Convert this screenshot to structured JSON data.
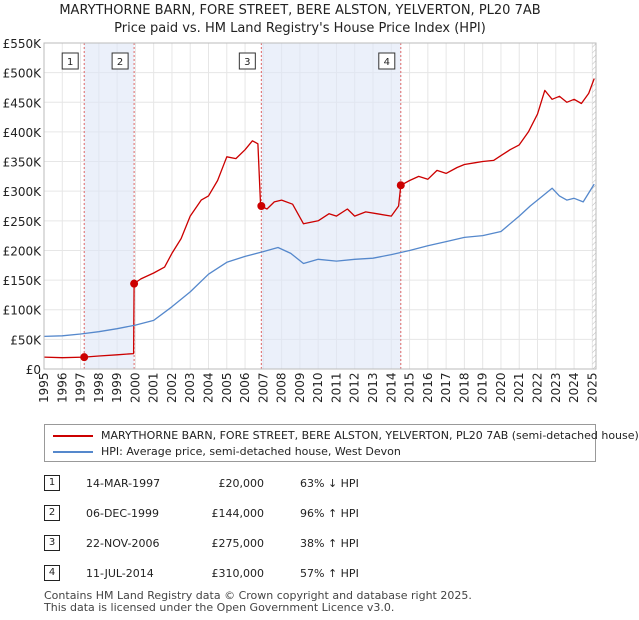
{
  "chart_data": {
    "type": "line",
    "title": "MARYTHORNE BARN, FORE STREET, BERE ALSTON, YELVERTON, PL20 7AB",
    "subtitle": "Price paid vs. HM Land Registry's House Price Index (HPI)",
    "xlim": [
      1995,
      2025.2
    ],
    "ylim": [
      0,
      550000
    ],
    "x_ticks": [
      1995,
      1996,
      1997,
      1998,
      1999,
      2000,
      2001,
      2002,
      2003,
      2004,
      2005,
      2006,
      2007,
      2008,
      2009,
      2010,
      2011,
      2012,
      2013,
      2014,
      2015,
      2016,
      2017,
      2018,
      2019,
      2020,
      2021,
      2022,
      2023,
      2024,
      2025
    ],
    "y_ticks": [
      0,
      50000,
      100000,
      150000,
      200000,
      250000,
      300000,
      350000,
      400000,
      450000,
      500000,
      550000
    ],
    "y_tick_labels": [
      "£0",
      "£50K",
      "£100K",
      "£150K",
      "£200K",
      "£250K",
      "£300K",
      "£350K",
      "£400K",
      "£450K",
      "£500K",
      "£550K"
    ],
    "series": [
      {
        "name": "MARYTHORNE BARN, FORE STREET, BERE ALSTON, YELVERTON, PL20 7AB (semi-detached house)",
        "color": "#cc0000",
        "points": [
          [
            1995.0,
            20000
          ],
          [
            1996.0,
            19000
          ],
          [
            1997.2,
            20000
          ],
          [
            1998.0,
            22000
          ],
          [
            1999.0,
            24000
          ],
          [
            1999.9,
            26000
          ],
          [
            1999.93,
            144000
          ],
          [
            2000.3,
            152000
          ],
          [
            2001.0,
            162000
          ],
          [
            2001.6,
            172000
          ],
          [
            2002.0,
            195000
          ],
          [
            2002.5,
            220000
          ],
          [
            2003.0,
            258000
          ],
          [
            2003.6,
            285000
          ],
          [
            2004.0,
            292000
          ],
          [
            2004.5,
            318000
          ],
          [
            2005.0,
            358000
          ],
          [
            2005.5,
            355000
          ],
          [
            2006.0,
            370000
          ],
          [
            2006.4,
            385000
          ],
          [
            2006.7,
            380000
          ],
          [
            2006.85,
            275000
          ],
          [
            2007.2,
            270000
          ],
          [
            2007.6,
            282000
          ],
          [
            2008.0,
            285000
          ],
          [
            2008.6,
            278000
          ],
          [
            2009.2,
            245000
          ],
          [
            2010.0,
            250000
          ],
          [
            2010.6,
            262000
          ],
          [
            2011.0,
            258000
          ],
          [
            2011.6,
            270000
          ],
          [
            2012.0,
            258000
          ],
          [
            2012.6,
            265000
          ],
          [
            2013.2,
            262000
          ],
          [
            2014.0,
            258000
          ],
          [
            2014.4,
            275000
          ],
          [
            2014.52,
            310000
          ],
          [
            2015.0,
            318000
          ],
          [
            2015.5,
            325000
          ],
          [
            2016.0,
            320000
          ],
          [
            2016.5,
            335000
          ],
          [
            2017.0,
            330000
          ],
          [
            2017.6,
            340000
          ],
          [
            2018.0,
            345000
          ],
          [
            2018.6,
            348000
          ],
          [
            2019.0,
            350000
          ],
          [
            2019.6,
            352000
          ],
          [
            2020.0,
            360000
          ],
          [
            2020.5,
            370000
          ],
          [
            2021.0,
            378000
          ],
          [
            2021.5,
            400000
          ],
          [
            2022.0,
            430000
          ],
          [
            2022.4,
            470000
          ],
          [
            2022.8,
            455000
          ],
          [
            2023.2,
            460000
          ],
          [
            2023.6,
            450000
          ],
          [
            2024.0,
            455000
          ],
          [
            2024.4,
            448000
          ],
          [
            2024.8,
            465000
          ],
          [
            2025.1,
            490000
          ]
        ]
      },
      {
        "name": "HPI: Average price, semi-detached house, West Devon",
        "color": "#5588cc",
        "points": [
          [
            1995.0,
            55000
          ],
          [
            1996.0,
            56000
          ],
          [
            1997.0,
            59000
          ],
          [
            1998.0,
            63000
          ],
          [
            1999.0,
            68000
          ],
          [
            2000.0,
            74000
          ],
          [
            2001.0,
            82000
          ],
          [
            2002.0,
            105000
          ],
          [
            2003.0,
            130000
          ],
          [
            2004.0,
            160000
          ],
          [
            2005.0,
            180000
          ],
          [
            2006.0,
            190000
          ],
          [
            2007.0,
            198000
          ],
          [
            2007.8,
            205000
          ],
          [
            2008.5,
            195000
          ],
          [
            2009.2,
            178000
          ],
          [
            2010.0,
            185000
          ],
          [
            2011.0,
            182000
          ],
          [
            2012.0,
            185000
          ],
          [
            2013.0,
            187000
          ],
          [
            2014.0,
            193000
          ],
          [
            2015.0,
            200000
          ],
          [
            2016.0,
            208000
          ],
          [
            2017.0,
            215000
          ],
          [
            2018.0,
            222000
          ],
          [
            2019.0,
            225000
          ],
          [
            2020.0,
            232000
          ],
          [
            2021.0,
            258000
          ],
          [
            2021.6,
            275000
          ],
          [
            2022.2,
            290000
          ],
          [
            2022.8,
            305000
          ],
          [
            2023.2,
            292000
          ],
          [
            2023.6,
            285000
          ],
          [
            2024.0,
            288000
          ],
          [
            2024.5,
            282000
          ],
          [
            2025.1,
            312000
          ]
        ]
      }
    ],
    "transactions": [
      {
        "label": "1",
        "x": 1997.2,
        "value": 20000
      },
      {
        "label": "2",
        "x": 1999.93,
        "value": 144000
      },
      {
        "label": "3",
        "x": 2006.89,
        "value": 275000
      },
      {
        "label": "4",
        "x": 2014.52,
        "value": 310000
      }
    ]
  },
  "legend": {
    "property": "MARYTHORNE BARN, FORE STREET, BERE ALSTON, YELVERTON, PL20 7AB (semi-detached house)",
    "hpi": "HPI: Average price, semi-detached house, West Devon"
  },
  "table": [
    {
      "num": "1",
      "date": "14-MAR-1997",
      "price": "£20,000",
      "hpi": "63% ↓ HPI"
    },
    {
      "num": "2",
      "date": "06-DEC-1999",
      "price": "£144,000",
      "hpi": "96% ↑ HPI"
    },
    {
      "num": "3",
      "date": "22-NOV-2006",
      "price": "£275,000",
      "hpi": "38% ↑ HPI"
    },
    {
      "num": "4",
      "date": "11-JUL-2014",
      "price": "£310,000",
      "hpi": "57% ↑ HPI"
    }
  ],
  "footer": {
    "line1": "Contains HM Land Registry data © Crown copyright and database right 2025.",
    "line2": "This data is licensed under the Open Government Licence v3.0."
  }
}
